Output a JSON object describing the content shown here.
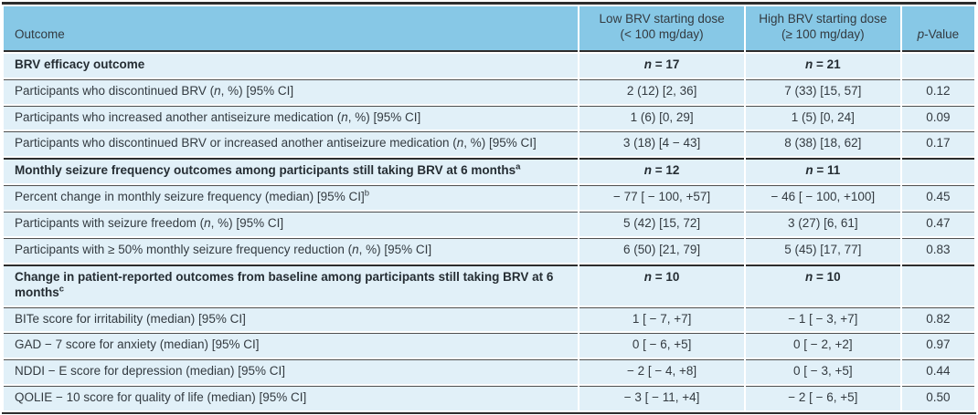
{
  "colors": {
    "header_bg": "#87c8e6",
    "row_bg": "#e1f0f8",
    "rule_dark": "#2d2d2d",
    "rule_light": "#4f4f4f",
    "text": "#333a40"
  },
  "table": {
    "columns": {
      "outcome": "Outcome",
      "low": {
        "line1": "Low BRV starting dose",
        "line2": "(< 100 mg/day)"
      },
      "high": {
        "line1": "High BRV starting dose",
        "line2": "(≥ 100 mg/day)"
      },
      "p": "<i>p</i>-Value"
    },
    "rows": [
      {
        "section": true,
        "label": "BRV efficacy outcome",
        "low": "<i>n</i> = 17",
        "high": "<i>n</i> = 21",
        "p": ""
      },
      {
        "section": false,
        "label": "Participants who discontinued BRV (<i>n</i>, %) [95% CI]",
        "low": "2 (12) [2, 36]",
        "high": "7 (33) [15, 57]",
        "p": "0.12"
      },
      {
        "section": false,
        "label": "Participants who increased another antiseizure medication (<i>n</i>, %) [95% CI]",
        "low": "1 (6) [0, 29]",
        "high": "1 (5) [0, 24]",
        "p": "0.09"
      },
      {
        "section": false,
        "label": "Participants who discontinued BRV or increased another antiseizure medication (<i>n</i>, %) [95% CI]",
        "low": "3 (18) [4 − 43]",
        "high": "8 (38) [18, 62]",
        "p": "0.17"
      },
      {
        "section": true,
        "label": "Monthly seizure frequency outcomes among participants still taking BRV at 6 months<sup>a</sup>",
        "low": "<i>n</i> = 12",
        "high": "<i>n</i> = 11",
        "p": ""
      },
      {
        "section": false,
        "label": "Percent change in monthly seizure frequency (median) [95% CI]<sup>b</sup>",
        "low": "− 77 [ − 100, +57]",
        "high": "− 46 [ − 100, +100]",
        "p": "0.45"
      },
      {
        "section": false,
        "label": "Participants with seizure freedom (<i>n</i>, %) [95% CI]",
        "low": "5 (42) [15, 72]",
        "high": "3 (27) [6, 61]",
        "p": "0.47"
      },
      {
        "section": false,
        "label": "Participants with ≥ 50% monthly seizure frequency reduction (<i>n</i>, %) [95% CI]",
        "low": "6 (50) [21, 79]",
        "high": "5 (45) [17, 77]",
        "p": "0.83"
      },
      {
        "section": true,
        "label": "Change in patient-reported outcomes from baseline among participants still taking BRV at 6 months<sup>c</sup>",
        "low": "<i>n</i> = 10",
        "high": "<i>n</i> = 10",
        "p": ""
      },
      {
        "section": false,
        "label": "BITe score for irritability (median) [95% CI]",
        "low": "1 [ − 7, +7]",
        "high": "− 1 [ − 3, +7]",
        "p": "0.82"
      },
      {
        "section": false,
        "label": "GAD − 7 score for anxiety (median) [95% CI]",
        "low": "0 [ − 6, +5]",
        "high": "0 [ − 2, +2]",
        "p": "0.97"
      },
      {
        "section": false,
        "label": "NDDI − E score for depression (median) [95% CI]",
        "low": "− 2 [ − 4, +8]",
        "high": "0 [ − 3, +5]",
        "p": "0.44"
      },
      {
        "section": false,
        "label": "QOLIE − 10 score for quality of life (median) [95% CI]",
        "low": "− 3 [ − 11, +4]",
        "high": "− 2 [ − 6, +5]",
        "p": "0.50"
      }
    ]
  }
}
